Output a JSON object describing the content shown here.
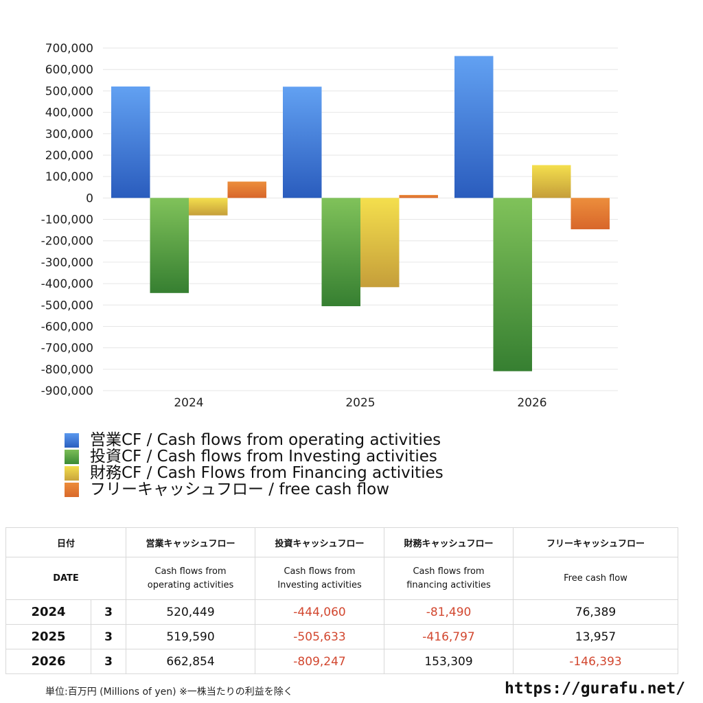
{
  "chart_data": {
    "type": "bar",
    "categories": [
      "2024",
      "2025",
      "2026"
    ],
    "series": [
      {
        "name": "営業CF / Cash flows from operating activities",
        "values": [
          520449,
          519590,
          662854
        ]
      },
      {
        "name": "投資CF / Cash flows from Investing activities",
        "values": [
          -444060,
          -505633,
          -809247
        ]
      },
      {
        "name": "財務CF / Cash Flows from Financing activities",
        "values": [
          -81490,
          -416797,
          153309
        ]
      },
      {
        "name": "フリーキャッシュフロー / free cash flow",
        "values": [
          76389,
          13957,
          -146393
        ]
      }
    ],
    "colors": [
      "#3b78d8",
      "#56a443",
      "#d9c441",
      "#e0782f"
    ],
    "ylim": [
      -900000,
      700000
    ],
    "yticks": [
      "700,000",
      "600,000",
      "500,000",
      "400,000",
      "300,000",
      "200,000",
      "100,000",
      "0",
      "-100,000",
      "-200,000",
      "-300,000",
      "-400,000",
      "-500,000",
      "-600,000",
      "-700,000",
      "-800,000",
      "-900,000"
    ],
    "grid": true,
    "legend_position": "bottom-left"
  },
  "table": {
    "header_jp": {
      "date": "日付",
      "operating": "営業キャッシュフロー",
      "investing": "投資キャッシュフロー",
      "financing": "財務キャッシュフロー",
      "free": "フリーキャッシュフロー"
    },
    "header_en": {
      "date": "DATE",
      "operating_1": "Cash flows from",
      "operating_2": "operating activities",
      "investing_1": "Cash flows from",
      "investing_2": "Investing activities",
      "financing_1": "Cash flows from",
      "financing_2": "financing activities",
      "free": "Free cash flow"
    },
    "rows": [
      {
        "year": "2024",
        "month": "3",
        "operating": "520,449",
        "investing": "-444,060",
        "financing": "-81,490",
        "free": "76,389"
      },
      {
        "year": "2025",
        "month": "3",
        "operating": "519,590",
        "investing": "-505,633",
        "financing": "-416,797",
        "free": "13,957"
      },
      {
        "year": "2026",
        "month": "3",
        "operating": "662,854",
        "investing": "-809,247",
        "financing": "153,309",
        "free": "-146,393"
      }
    ]
  },
  "footnote": "単位:百万円 (Millions of yen) ※一株当たりの利益を除く",
  "site": "https://gurafu.net/"
}
